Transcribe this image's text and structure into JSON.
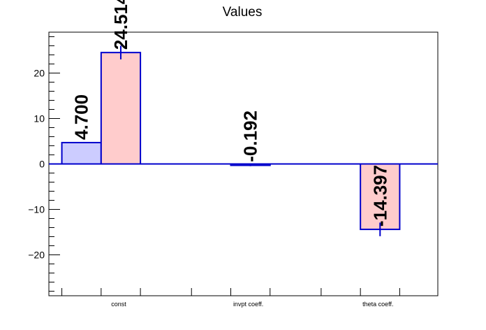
{
  "chart_data": {
    "type": "bar",
    "title": "Values",
    "xlabel": "",
    "ylabel": "",
    "categories": [
      "const",
      "invpt coeff.",
      "theta coeff."
    ],
    "ylim": [
      -29,
      29
    ],
    "yticks": [
      -20,
      -10,
      0,
      10,
      20
    ],
    "ytick_labels": [
      "−20",
      "−10",
      "0",
      "10",
      "20"
    ],
    "grid": false,
    "legend": "none",
    "series": [
      {
        "values": [
          4.7,
          null,
          null
        ],
        "labels": [
          "4.700",
          "",
          ""
        ],
        "errors": [
          0,
          0,
          0
        ],
        "fill": "#ccccff",
        "stroke": "#0000cc"
      },
      {
        "values": [
          24.514,
          -0.192,
          -14.397
        ],
        "labels": [
          "24.514",
          "-0.192",
          "-14.397"
        ],
        "errors": [
          1.5,
          0.3,
          1.5
        ],
        "fill": "#ffcccc",
        "stroke": "#0000cc"
      }
    ]
  }
}
